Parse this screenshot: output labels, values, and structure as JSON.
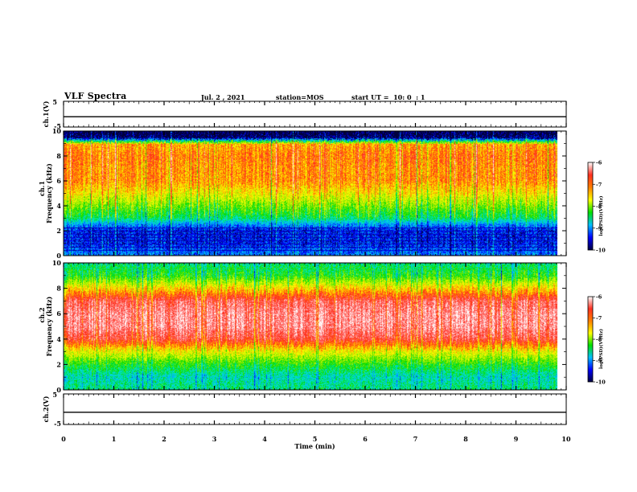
{
  "header": {
    "title": "VLF Spectra",
    "date": "Jul. 2 , 2021",
    "station": "station=MOS",
    "start": "start UT =  10: 0  : 1"
  },
  "panels": {
    "ch1_wave": {
      "ylabel": "ch.1(V)",
      "ticks": [
        "5",
        "-5"
      ]
    },
    "ch1_spec": {
      "ylabel_top": "ch.1",
      "ylabel": "Frequency (kHz)",
      "yticks": [
        "0",
        "2",
        "4",
        "6",
        "8",
        "10"
      ]
    },
    "ch2_spec": {
      "ylabel_top": "ch.2",
      "ylabel": "Frequency (kHz)",
      "yticks": [
        "0",
        "2",
        "4",
        "6",
        "8",
        "10"
      ]
    },
    "ch2_wave": {
      "ylabel": "ch.2(V)",
      "ticks": [
        "5",
        "-5"
      ]
    },
    "xaxis": {
      "label": "Time (min)",
      "ticks": [
        "0",
        "1",
        "2",
        "3",
        "4",
        "5",
        "6",
        "7",
        "8",
        "9",
        "10"
      ]
    }
  },
  "colorbar": {
    "label": "log(PSD)(V²/Hz)",
    "ticks": [
      "-6",
      "-7",
      "-8",
      "-9",
      "-10"
    ],
    "colors": [
      "#ffffff",
      "#ff3020",
      "#ff8000",
      "#ffff00",
      "#00e000",
      "#00c0ff",
      "#0000ff",
      "#000040"
    ]
  },
  "chart_data": [
    {
      "type": "line",
      "channel": "ch.1",
      "xlabel": "Time (min)",
      "ylabel": "ch.1(V)",
      "xlim": [
        0,
        10
      ],
      "ylim": [
        -5,
        5
      ],
      "x": [
        0,
        10
      ],
      "y": [
        -1,
        -1
      ]
    },
    {
      "type": "heatmap",
      "channel": "ch.1",
      "xlabel": "Time (min)",
      "ylabel": "Frequency (kHz)",
      "xlim": [
        0,
        9.85
      ],
      "ylim": [
        0,
        10
      ],
      "zlabel": "log(PSD)(V²/Hz)",
      "zlim": [
        -10,
        -6
      ],
      "freq_bands_khz": [
        0,
        1,
        2,
        2.5,
        3,
        4,
        5,
        6,
        7,
        8,
        9,
        9.5,
        10
      ],
      "typical_log_psd": [
        -9.3,
        -9.6,
        -9.6,
        -9.2,
        -8.6,
        -8.1,
        -7.6,
        -7.2,
        -7.2,
        -7.1,
        -7.3,
        -9.8,
        -10
      ]
    },
    {
      "type": "heatmap",
      "channel": "ch.2",
      "xlabel": "Time (min)",
      "ylabel": "Frequency (kHz)",
      "xlim": [
        0,
        9.85
      ],
      "ylim": [
        0,
        10
      ],
      "zlabel": "log(PSD)(V²/Hz)",
      "zlim": [
        -10,
        -6
      ],
      "freq_bands_khz": [
        0,
        1,
        2,
        3,
        4,
        5,
        6,
        7,
        8,
        9,
        10
      ],
      "typical_log_psd": [
        -8.6,
        -8.8,
        -8.3,
        -7.6,
        -6.6,
        -6.3,
        -6.3,
        -6.5,
        -7.4,
        -8.3,
        -8.6
      ]
    },
    {
      "type": "line",
      "channel": "ch.2",
      "xlabel": "Time (min)",
      "ylabel": "ch.2(V)",
      "xlim": [
        0,
        10
      ],
      "ylim": [
        -5,
        5
      ],
      "x": [
        0,
        10
      ],
      "y": [
        -1,
        -1
      ]
    }
  ]
}
